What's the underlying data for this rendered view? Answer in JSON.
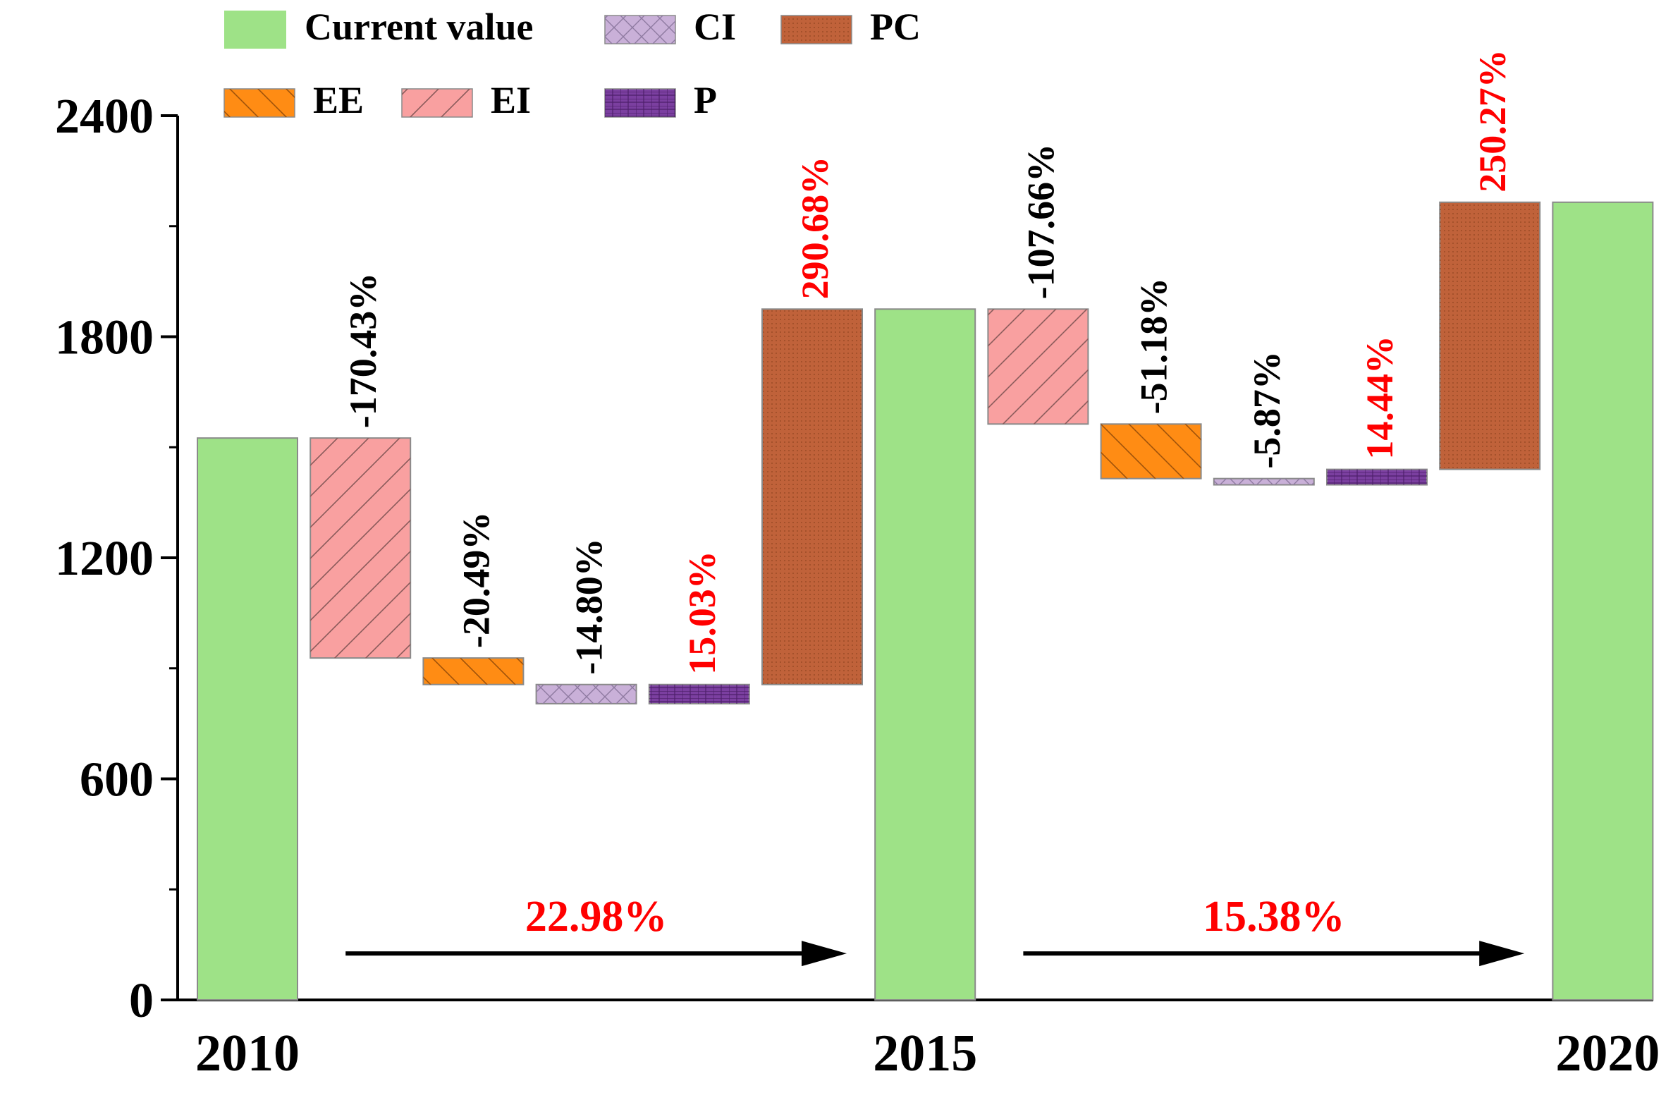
{
  "chart_data": {
    "type": "waterfall",
    "title": "",
    "xlabel": "",
    "ylabel": "",
    "ylim": [
      0,
      2400
    ],
    "yticks": [
      0,
      600,
      1200,
      1800,
      2400
    ],
    "yminor_step": 300,
    "grid": false,
    "legend_position": "top",
    "legend": [
      {
        "key": "current",
        "label": "Current value"
      },
      {
        "key": "CI",
        "label": "CI"
      },
      {
        "key": "PC",
        "label": "PC"
      },
      {
        "key": "EE",
        "label": "EE"
      },
      {
        "key": "EI",
        "label": "EI"
      },
      {
        "key": "P",
        "label": "P"
      }
    ],
    "series_style": {
      "current": {
        "fill": "#9ee287",
        "pattern": "none"
      },
      "EI": {
        "fill": "#f9a0a0",
        "pattern": "diag-right"
      },
      "EE": {
        "fill": "#ff8c14",
        "pattern": "diag-left"
      },
      "CI": {
        "fill": "#c9b0d8",
        "pattern": "crosshatch"
      },
      "P": {
        "fill": "#7b3fa0",
        "pattern": "grid"
      },
      "PC": {
        "fill": "#c0623a",
        "pattern": "dots"
      }
    },
    "year_labels": [
      "2010",
      "2015",
      "2020"
    ],
    "bars": [
      {
        "slot": 0,
        "series": "current",
        "year": "2010",
        "start": 0,
        "end": 1525
      },
      {
        "slot": 1,
        "series": "EI",
        "start": 1525,
        "end": 928,
        "label": "-170.43%"
      },
      {
        "slot": 2,
        "series": "EE",
        "start": 928,
        "end": 856,
        "label": "-20.49%"
      },
      {
        "slot": 3,
        "series": "CI",
        "start": 856,
        "end": 804,
        "label": "-14.80%"
      },
      {
        "slot": 4,
        "series": "P",
        "start": 804,
        "end": 856,
        "label": "15.03%"
      },
      {
        "slot": 5,
        "series": "PC",
        "start": 856,
        "end": 1875,
        "label": "290.68%"
      },
      {
        "slot": 6,
        "series": "current",
        "year": "2015",
        "start": 0,
        "end": 1875
      },
      {
        "slot": 7,
        "series": "EI",
        "start": 1875,
        "end": 1563,
        "label": "-107.66%"
      },
      {
        "slot": 8,
        "series": "EE",
        "start": 1563,
        "end": 1415,
        "label": "-51.18%"
      },
      {
        "slot": 9,
        "series": "CI",
        "start": 1415,
        "end": 1398,
        "label": "-5.87%"
      },
      {
        "slot": 10,
        "series": "P",
        "start": 1398,
        "end": 1440,
        "label": "14.44%"
      },
      {
        "slot": 11,
        "series": "PC",
        "start": 1440,
        "end": 2165,
        "label": "250.27%"
      },
      {
        "slot": 12,
        "series": "current",
        "year": "2020",
        "start": 0,
        "end": 2165
      }
    ],
    "growth_arrows": [
      {
        "label": "22.98%",
        "from_slot": 1,
        "to_slot": 5,
        "value": 126
      },
      {
        "label": "15.38%",
        "from_slot": 7,
        "to_slot": 11,
        "value": 126
      }
    ],
    "colors": {
      "positive_label": "#ff0000",
      "negative_label": "#000000",
      "axis": "#000000"
    }
  }
}
